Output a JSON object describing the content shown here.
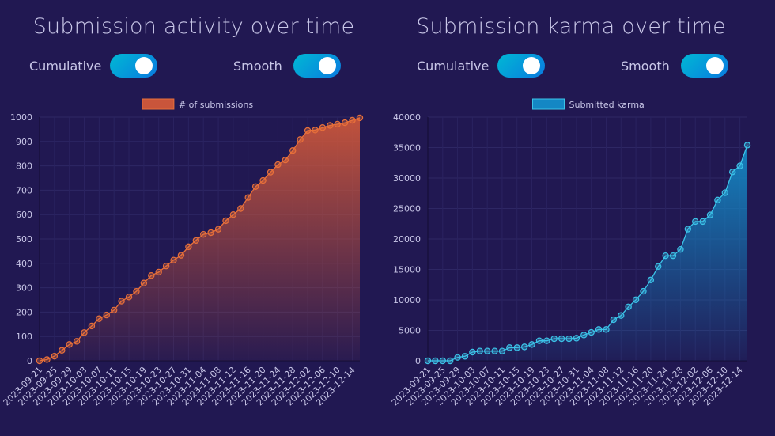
{
  "panels": [
    {
      "title": "Submission activity over time",
      "cumulative_label": "Cumulative",
      "cumulative_on": true,
      "smooth_label": "Smooth",
      "smooth_on": true
    },
    {
      "title": "Submission karma over time",
      "cumulative_label": "Cumulative",
      "cumulative_on": true,
      "smooth_label": "Smooth",
      "smooth_on": true
    }
  ],
  "chart_data": [
    {
      "type": "area",
      "legend": "# of submissions",
      "legend_placement": "top",
      "color": "#e8703a",
      "fill_top": "#c9553b",
      "ylim": [
        0,
        1000
      ],
      "yticks": [
        "0",
        "100",
        "200",
        "300",
        "400",
        "500",
        "600",
        "700",
        "800",
        "900",
        "1000"
      ],
      "ytick_values": [
        0,
        100,
        200,
        300,
        400,
        500,
        600,
        700,
        800,
        900,
        1000
      ],
      "xticks": [
        "2023-09-21",
        "2023-09-25",
        "2023-09-29",
        "2023-10-03",
        "2023-10-07",
        "2023-10-11",
        "2023-10-15",
        "2023-10-19",
        "2023-10-23",
        "2023-10-27",
        "2023-10-31",
        "2023-11-04",
        "2023-11-08",
        "2023-11-12",
        "2023-11-16",
        "2023-11-20",
        "2023-11-24",
        "2023-11-28",
        "2023-12-02",
        "2023-12-06",
        "2023-12-10",
        "2023-12-14"
      ],
      "values": [
        0,
        5,
        19,
        43,
        67,
        80,
        116,
        143,
        173,
        188,
        208,
        245,
        262,
        285,
        319,
        350,
        364,
        389,
        413,
        433,
        468,
        494,
        519,
        526,
        540,
        575,
        600,
        625,
        670,
        715,
        740,
        774,
        805,
        824,
        863,
        908,
        945,
        947,
        957,
        966,
        971,
        977,
        987,
        997
      ]
    },
    {
      "type": "area",
      "legend": "Submitted karma",
      "legend_placement": "top",
      "color": "#3cc3e8",
      "fill_top": "#1487c4",
      "ylim": [
        0,
        40000
      ],
      "yticks": [
        "0",
        "5000",
        "10000",
        "15000",
        "20000",
        "25000",
        "30000",
        "35000",
        "40000"
      ],
      "ytick_values": [
        0,
        5000,
        10000,
        15000,
        20000,
        25000,
        30000,
        35000,
        40000
      ],
      "xticks": [
        "2023-09-21",
        "2023-09-25",
        "2023-09-29",
        "2023-10-03",
        "2023-10-07",
        "2023-10-11",
        "2023-10-15",
        "2023-10-19",
        "2023-10-23",
        "2023-10-27",
        "2023-10-31",
        "2023-11-04",
        "2023-11-08",
        "2023-11-12",
        "2023-11-16",
        "2023-11-20",
        "2023-11-24",
        "2023-11-28",
        "2023-12-02",
        "2023-12-06",
        "2023-12-10",
        "2023-12-14"
      ],
      "values": [
        0,
        0,
        0,
        0,
        560,
        740,
        1430,
        1600,
        1600,
        1600,
        1600,
        2160,
        2160,
        2290,
        2680,
        3290,
        3290,
        3630,
        3630,
        3630,
        3720,
        4240,
        4670,
        5150,
        5150,
        6750,
        7440,
        8860,
        10030,
        11420,
        13270,
        15480,
        17250,
        17250,
        18290,
        21620,
        22870,
        22870,
        23950,
        26380,
        27590,
        31000,
        32000,
        35410
      ]
    }
  ]
}
